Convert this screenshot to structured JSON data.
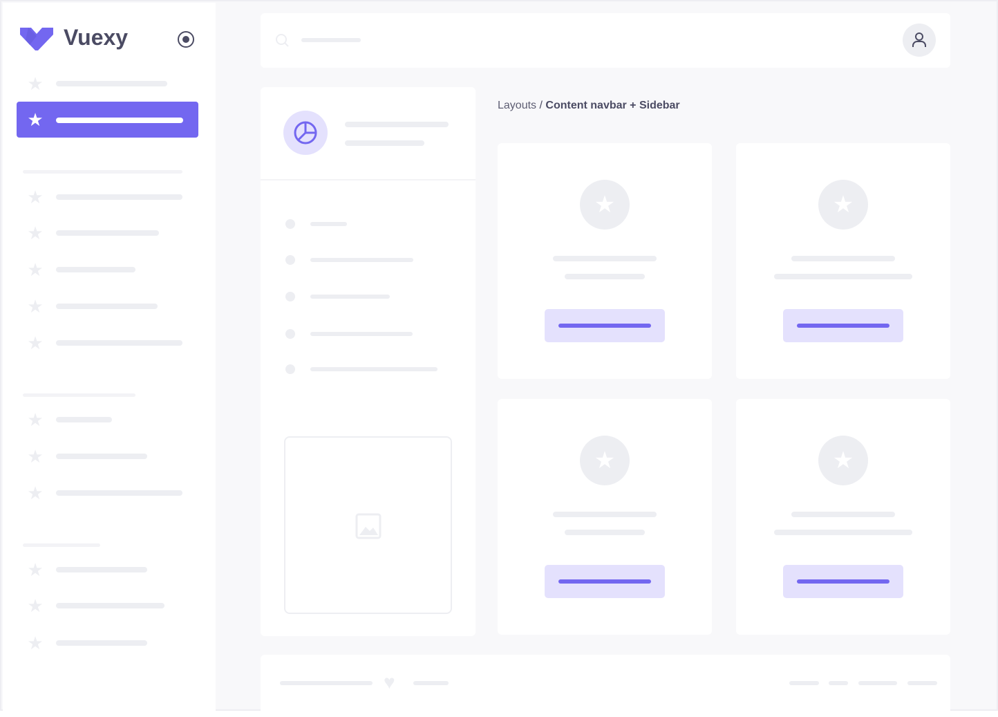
{
  "brand": {
    "name": "Vuexy",
    "color": "#7367F0"
  },
  "breadcrumb": {
    "parent": "Layouts",
    "separator": " / ",
    "current": "Content navbar + Sidebar"
  },
  "icons": {
    "logo": "vuexy-logo",
    "toggle": "radio-circle-icon",
    "nav": "star-icon",
    "search": "search-icon",
    "user": "user-icon",
    "panel": "pie-chart-icon",
    "image": "image-icon",
    "footer": "heart-icon"
  },
  "colors": {
    "primary": "#7367F0",
    "primary_light": "#E4E1FD",
    "placeholder": "#EDEEF2",
    "background": "#F8F8FA",
    "text": "#4B4B63"
  }
}
